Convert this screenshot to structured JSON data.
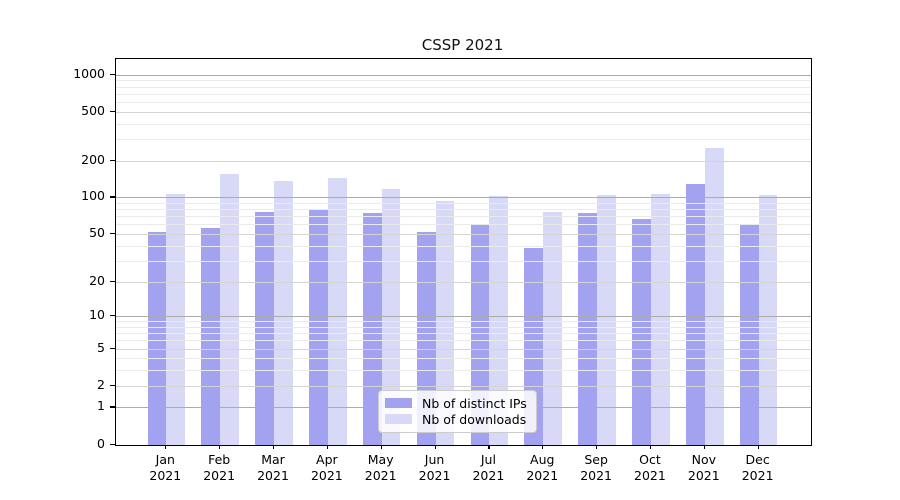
{
  "title": "CSSP 2021",
  "chart_data": {
    "type": "bar",
    "title": "CSSP 2021",
    "categories": [
      "Jan 2021",
      "Feb 2021",
      "Mar 2021",
      "Apr 2021",
      "May 2021",
      "Jun 2021",
      "Jul 2021",
      "Aug 2021",
      "Sep 2021",
      "Oct 2021",
      "Nov 2021",
      "Dec 2021"
    ],
    "series": [
      {
        "name": "Nb of distinct IPs",
        "color": "#a2a2f0",
        "values": [
          52,
          56,
          76,
          80,
          75,
          52,
          61,
          38,
          74,
          66,
          130,
          59
        ]
      },
      {
        "name": "Nb of downloads",
        "color": "#d8d8f7",
        "values": [
          107,
          155,
          137,
          145,
          118,
          94,
          103,
          76,
          105,
          106,
          255,
          105
        ]
      }
    ],
    "yscale": "log1p",
    "y_ticks": [
      0,
      1,
      2,
      5,
      10,
      20,
      50,
      100,
      200,
      500,
      1000
    ],
    "y_minor_ticks": [
      3,
      4,
      6,
      7,
      8,
      9,
      30,
      40,
      60,
      70,
      80,
      90,
      300,
      400,
      600,
      700,
      800,
      900
    ],
    "ylim": [
      0,
      1337
    ],
    "grid": "on (major + minor), drawn above bars",
    "legend_position": "lower center",
    "legend_entries": [
      "Nb of distinct IPs",
      "Nb of downloads"
    ]
  },
  "colors": {
    "bar_distinct_ips": "#a2a2f0",
    "bar_downloads": "#d8d8f7",
    "grid_decade": "#ababab",
    "grid_labeled": "#d4d4d4",
    "grid_minor": "#ebebeb",
    "axis": "#000000",
    "legend_border": "#cccccc"
  }
}
